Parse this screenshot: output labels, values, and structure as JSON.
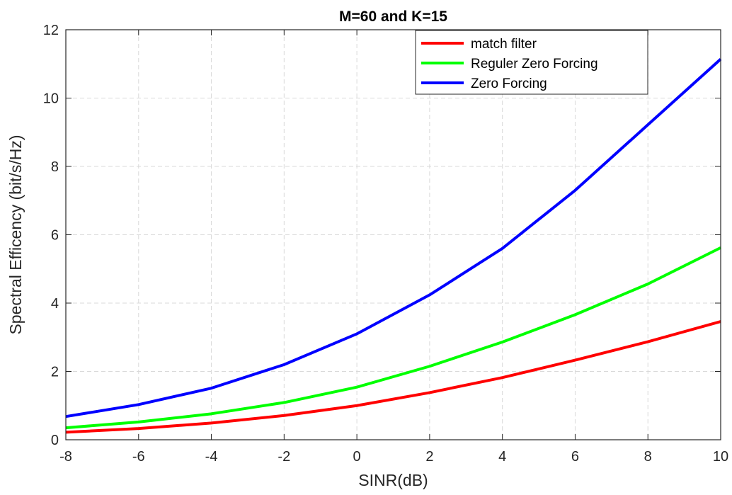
{
  "chart_data": {
    "type": "line",
    "title": "M=60 and K=15",
    "xlabel": "SINR(dB)",
    "ylabel": "Spectral Efficency (bit/s/Hz)",
    "x": [
      -8,
      -6,
      -4,
      -2,
      0,
      2,
      4,
      6,
      8,
      10
    ],
    "xlim": [
      -8,
      10
    ],
    "ylim": [
      0,
      12
    ],
    "xticks": [
      -8,
      -6,
      -4,
      -2,
      0,
      2,
      4,
      6,
      8,
      10
    ],
    "yticks": [
      0,
      2,
      4,
      6,
      8,
      10,
      12
    ],
    "xtick_labels": [
      "-8",
      "-6",
      "-4",
      "-2",
      "0",
      "2",
      "4",
      "6",
      "8",
      "10"
    ],
    "ytick_labels": [
      "0",
      "2",
      "4",
      "6",
      "8",
      "10",
      "12"
    ],
    "grid": true,
    "legend_position": "top-right",
    "series": [
      {
        "name": "match filter",
        "color": "#ff0000",
        "values": [
          0.22,
          0.33,
          0.49,
          0.71,
          1.0,
          1.38,
          1.82,
          2.33,
          2.87,
          3.46
        ]
      },
      {
        "name": "Reguler Zero Forcing",
        "color": "#00ff00",
        "values": [
          0.35,
          0.52,
          0.76,
          1.09,
          1.54,
          2.15,
          2.86,
          3.66,
          4.56,
          5.62
        ]
      },
      {
        "name": "Zero Forcing",
        "color": "#0000ff",
        "values": [
          0.68,
          1.03,
          1.51,
          2.2,
          3.1,
          4.24,
          5.6,
          7.3,
          9.22,
          11.14
        ]
      }
    ]
  }
}
